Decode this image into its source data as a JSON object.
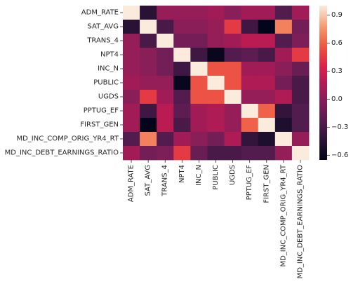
{
  "chart_data": {
    "type": "heatmap",
    "title": "",
    "xlabel": "",
    "ylabel": "",
    "labels": [
      "ADM_RATE",
      "SAT_AVG",
      "TRANS_4",
      "NPT4",
      "INC_N",
      "PUBLIC",
      "UGDS",
      "PPTUG_EF",
      "FIRST_GEN",
      "MD_INC_COMP_ORIG_YR4_RT",
      "MD_INC_DEBT_EARNINGS_RATIO"
    ],
    "matrix": [
      [
        1.0,
        -0.45,
        0.05,
        0.05,
        0.05,
        0.1,
        0.0,
        0.1,
        0.1,
        -0.25,
        0.1
      ],
      [
        -0.45,
        1.0,
        -0.3,
        0.0,
        0.0,
        0.05,
        0.45,
        -0.35,
        -0.65,
        0.7,
        -0.1
      ],
      [
        0.05,
        -0.3,
        1.0,
        -0.1,
        -0.1,
        0.05,
        0.1,
        0.2,
        0.2,
        -0.25,
        -0.05
      ],
      [
        0.05,
        0.0,
        -0.1,
        1.0,
        -0.35,
        -0.62,
        -0.25,
        -0.2,
        -0.3,
        0.1,
        0.45
      ],
      [
        0.05,
        0.0,
        -0.1,
        -0.35,
        1.0,
        0.55,
        0.55,
        0.1,
        0.1,
        0.0,
        -0.15
      ],
      [
        0.1,
        0.05,
        0.05,
        -0.62,
        0.55,
        1.0,
        0.55,
        0.15,
        0.15,
        -0.1,
        -0.3
      ],
      [
        0.0,
        0.45,
        0.1,
        -0.25,
        0.55,
        0.55,
        1.0,
        0.05,
        0.05,
        0.15,
        -0.3
      ],
      [
        0.1,
        -0.35,
        0.2,
        -0.2,
        0.1,
        0.15,
        0.05,
        1.0,
        0.6,
        -0.4,
        -0.25
      ],
      [
        0.1,
        -0.65,
        0.2,
        -0.3,
        0.1,
        0.15,
        0.05,
        0.6,
        1.0,
        -0.5,
        -0.25
      ],
      [
        -0.25,
        0.7,
        -0.25,
        0.1,
        0.0,
        -0.1,
        0.15,
        -0.4,
        -0.5,
        1.0,
        0.05
      ],
      [
        0.1,
        -0.1,
        -0.05,
        0.45,
        -0.15,
        -0.3,
        -0.3,
        -0.25,
        -0.25,
        0.05,
        1.0
      ]
    ],
    "vmin": -0.65,
    "vmax": 1.0,
    "colormap": "rocket",
    "colorbar": {
      "ticks": [
        0.9,
        0.6,
        0.3,
        0.0,
        -0.3,
        -0.6
      ],
      "tick_labels": [
        "0.9",
        "0.6",
        "0.3",
        "0.0",
        "−0.3",
        "−0.6"
      ]
    },
    "grid": false,
    "legend": "colorbar-right"
  }
}
